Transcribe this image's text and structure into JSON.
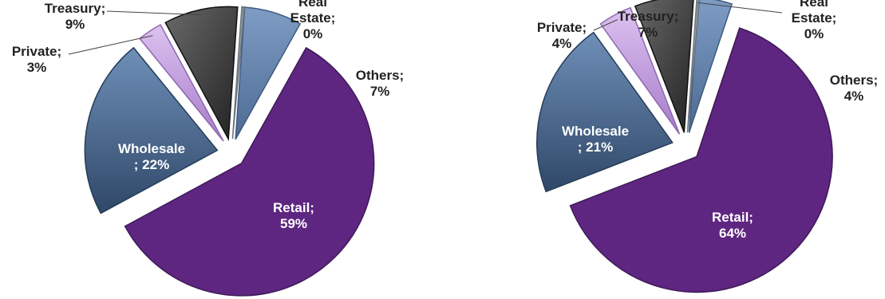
{
  "colors": {
    "retail": "#5e2680",
    "wholesale": "#3d5a82",
    "private": "#c39be0",
    "treasury": "#3a3a3a",
    "real_estate": "#9aa3ad",
    "others": "#5d80ab",
    "label_dark": "#222222",
    "label_light": "#ffffff"
  },
  "chart_data": [
    {
      "type": "pie",
      "slices": [
        {
          "name": "Others",
          "value": 7,
          "label_lines": [
            "Others;",
            "7%"
          ]
        },
        {
          "name": "Retail",
          "value": 59,
          "label_lines": [
            "Retail;",
            "59%"
          ]
        },
        {
          "name": "Wholesale",
          "value": 22,
          "label_lines": [
            "Wholesale",
            "; 22%"
          ]
        },
        {
          "name": "Private",
          "value": 3,
          "label_lines": [
            "Private;",
            "3%"
          ]
        },
        {
          "name": "Treasury",
          "value": 9,
          "label_lines": [
            "Treasury;",
            "9%"
          ]
        },
        {
          "name": "Real Estate",
          "value": 0,
          "label_lines": [
            "Real",
            "Estate;",
            "0%"
          ]
        }
      ]
    },
    {
      "type": "pie",
      "slices": [
        {
          "name": "Others",
          "value": 4,
          "label_lines": [
            "Others;",
            "4%"
          ]
        },
        {
          "name": "Retail",
          "value": 64,
          "label_lines": [
            "Retail;",
            "64%"
          ]
        },
        {
          "name": "Wholesale",
          "value": 21,
          "label_lines": [
            "Wholesale",
            "; 21%"
          ]
        },
        {
          "name": "Private",
          "value": 4,
          "label_lines": [
            "Private;",
            "4%"
          ]
        },
        {
          "name": "Treasury",
          "value": 7,
          "label_lines": [
            "Treasury;",
            "7%"
          ]
        },
        {
          "name": "Real Estate",
          "value": 0,
          "label_lines": [
            "Real",
            "Estate;",
            "0%"
          ]
        }
      ]
    }
  ]
}
